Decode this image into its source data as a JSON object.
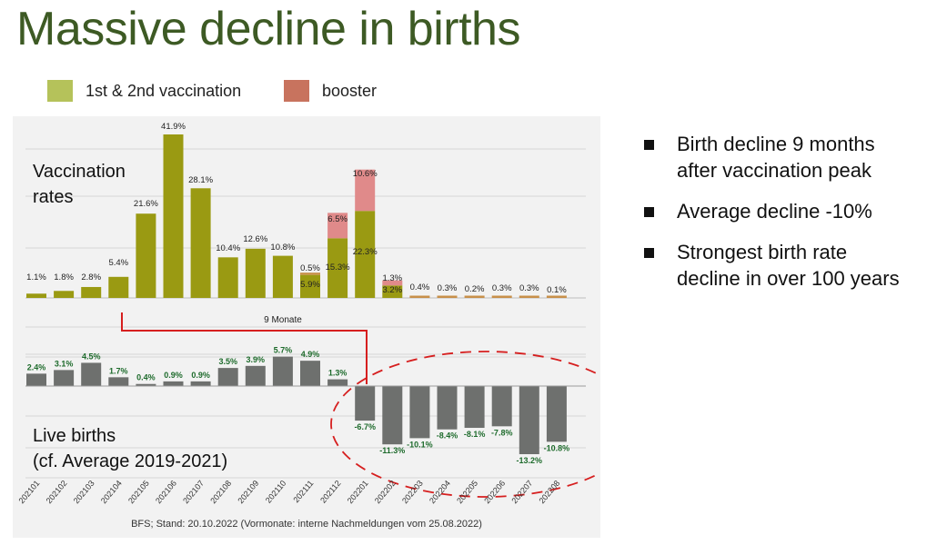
{
  "title": "Massive decline in births",
  "legend": [
    {
      "label": "1st & 2nd vaccination",
      "color": "#b5c25a"
    },
    {
      "label": "booster",
      "color": "#c8735e"
    }
  ],
  "bullets": [
    "Birth decline  9 months\nafter vaccination peak",
    "Average decline  -10%",
    "Strongest birth rate\ndecline in over 100 years"
  ],
  "chart_data": [
    {
      "type": "bar",
      "title": "Vaccination\nrates",
      "categories": [
        "202101",
        "202102",
        "202103",
        "202104",
        "202105",
        "202106",
        "202107",
        "202108",
        "202109",
        "202110",
        "202111",
        "202112",
        "202201",
        "202202",
        "202203",
        "202204",
        "202205",
        "202206",
        "202207",
        "202208"
      ],
      "series": [
        {
          "name": "1st & 2nd vaccination",
          "values": [
            1.1,
            1.8,
            2.8,
            5.4,
            21.6,
            41.9,
            28.1,
            10.4,
            12.6,
            10.8,
            5.9,
            15.3,
            22.3,
            3.2,
            null,
            null,
            null,
            null,
            null,
            null
          ]
        },
        {
          "name": "booster",
          "values": [
            null,
            null,
            null,
            null,
            null,
            null,
            null,
            null,
            null,
            null,
            0.5,
            6.5,
            10.6,
            1.3,
            0.4,
            0.3,
            0.2,
            0.3,
            0.3,
            0.1
          ]
        }
      ],
      "labels": [
        "1.1%",
        "1.8%",
        "2.8%",
        "5.4%",
        "21.6%",
        "41.9%",
        "28.1%",
        "10.4%",
        "12.6%",
        "10.8%",
        "5.9%",
        "15.3%",
        "22.3%",
        "3.2%",
        "",
        "",
        "",
        "",
        "",
        ""
      ],
      "booster_labels": [
        "",
        "",
        "",
        "",
        "",
        "",
        "",
        "",
        "",
        "",
        "0.5%",
        "6.5%",
        "10.6%",
        "1.3%",
        "0.4%",
        "0.3%",
        "0.2%",
        "0.3%",
        "0.3%",
        "0.1%"
      ],
      "colors": {
        "vacc": "#9a9a12",
        "booster": "#e08a8a",
        "booster_small": "#c8904a"
      }
    },
    {
      "type": "bar",
      "title": "Live births\n(cf. Average 2019-2021)",
      "categories": [
        "202101",
        "202102",
        "202103",
        "202104",
        "202105",
        "202106",
        "202107",
        "202108",
        "202109",
        "202110",
        "202111",
        "202112",
        "202201",
        "202202",
        "202203",
        "202204",
        "202205",
        "202206",
        "202207",
        "202208"
      ],
      "values": [
        2.4,
        3.1,
        4.5,
        1.7,
        0.4,
        0.9,
        0.9,
        3.5,
        3.9,
        5.7,
        4.9,
        1.3,
        -6.7,
        -11.3,
        -10.1,
        -8.4,
        -8.1,
        -7.8,
        -13.2,
        -10.8
      ],
      "labels": [
        "2.4%",
        "3.1%",
        "4.5%",
        "1.7%",
        "0.4%",
        "0.9%",
        "0.9%",
        "3.5%",
        "3.9%",
        "5.7%",
        "4.9%",
        "1.3%",
        "-6.7%",
        "-11.3%",
        "-10.1%",
        "-8.4%",
        "-8.1%",
        "-7.8%",
        "-13.2%",
        "-10.8%"
      ],
      "color": "#6e706e"
    }
  ],
  "annotation_lag": "9 Monate",
  "source": "BFS; Stand: 20.10.2022 (Vormonate: interne Nachmeldungen vom 25.08.2022)"
}
